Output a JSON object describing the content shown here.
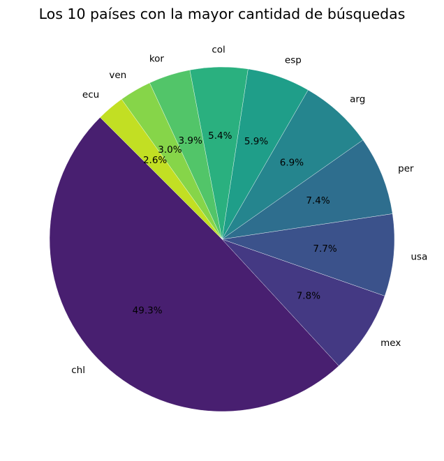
{
  "chart_data": {
    "type": "pie",
    "title": "Los 10 países con la mayor cantidad de búsquedas",
    "categories": [
      "chl",
      "mex",
      "usa",
      "per",
      "arg",
      "esp",
      "col",
      "kor",
      "ven",
      "ecu"
    ],
    "values": [
      49.3,
      7.8,
      7.7,
      7.4,
      6.9,
      5.9,
      5.4,
      3.9,
      3.0,
      2.6
    ],
    "value_labels": [
      "49.3%",
      "7.8%",
      "7.7%",
      "7.4%",
      "6.9%",
      "5.9%",
      "5.4%",
      "3.9%",
      "3.0%",
      "2.6%"
    ],
    "colors": [
      "#481f70",
      "#443983",
      "#3b528b",
      "#2e6e8e",
      "#25858e",
      "#1f9e89",
      "#2ab07f",
      "#52c569",
      "#86d549",
      "#c2df23"
    ],
    "legend": false
  }
}
